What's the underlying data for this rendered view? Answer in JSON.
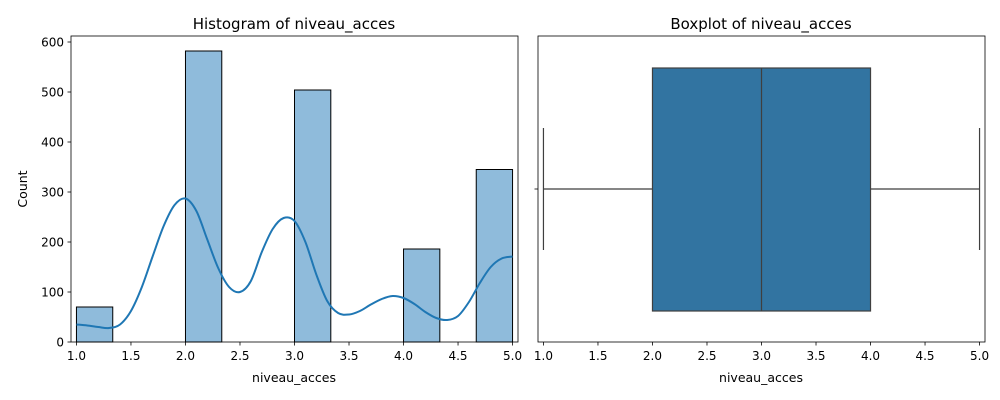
{
  "colors": {
    "hist_fill": "#8fbbdb",
    "hist_edge": "#000000",
    "kde_line": "#1f77b4",
    "box_fill": "#3274a1",
    "box_line": "#3f3f3f"
  },
  "chart_data": [
    {
      "type": "bar",
      "subtype": "histogram",
      "title": "Histogram of niveau_acces",
      "xlabel": "niveau_acces",
      "ylabel": "Count",
      "bin_edges": [
        1.0,
        1.333,
        1.667,
        2.0,
        2.333,
        2.667,
        3.0,
        3.333,
        3.667,
        4.0,
        4.333,
        4.667,
        5.0
      ],
      "values": [
        70,
        0,
        0,
        582,
        0,
        0,
        504,
        0,
        0,
        186,
        0,
        345
      ],
      "xlim": [
        0.95,
        5.05
      ],
      "ylim": [
        0,
        612
      ],
      "xticks": [
        "1.0",
        "1.5",
        "2.0",
        "2.5",
        "3.0",
        "3.5",
        "4.0",
        "4.5",
        "5.0"
      ],
      "yticks": [
        "0",
        "100",
        "200",
        "300",
        "400",
        "500",
        "600"
      ],
      "kde": {
        "x": [
          1.0,
          1.1,
          1.2,
          1.3,
          1.4,
          1.5,
          1.6,
          1.7,
          1.8,
          1.9,
          2.0,
          2.1,
          2.2,
          2.3,
          2.4,
          2.5,
          2.6,
          2.7,
          2.8,
          2.9,
          3.0,
          3.1,
          3.2,
          3.3,
          3.4,
          3.5,
          3.6,
          3.7,
          3.8,
          3.9,
          4.0,
          4.1,
          4.2,
          4.3,
          4.4,
          4.5,
          4.6,
          4.7,
          4.8,
          4.9,
          5.0
        ],
        "y": [
          35,
          33,
          30,
          28,
          35,
          62,
          110,
          172,
          232,
          274,
          287,
          262,
          205,
          148,
          110,
          100,
          122,
          180,
          226,
          248,
          242,
          200,
          135,
          82,
          58,
          55,
          62,
          75,
          86,
          92,
          88,
          76,
          60,
          48,
          44,
          52,
          80,
          118,
          150,
          167,
          171
        ]
      }
    },
    {
      "type": "boxplot",
      "title": "Boxplot of niveau_acces",
      "xlabel": "niveau_acces",
      "min": 1.0,
      "q1": 2.0,
      "median": 3.0,
      "q3": 4.0,
      "max": 5.0,
      "xlim": [
        0.95,
        5.05
      ],
      "xticks": [
        "1.0",
        "1.5",
        "2.0",
        "2.5",
        "3.0",
        "3.5",
        "4.0",
        "4.5",
        "5.0"
      ]
    }
  ]
}
